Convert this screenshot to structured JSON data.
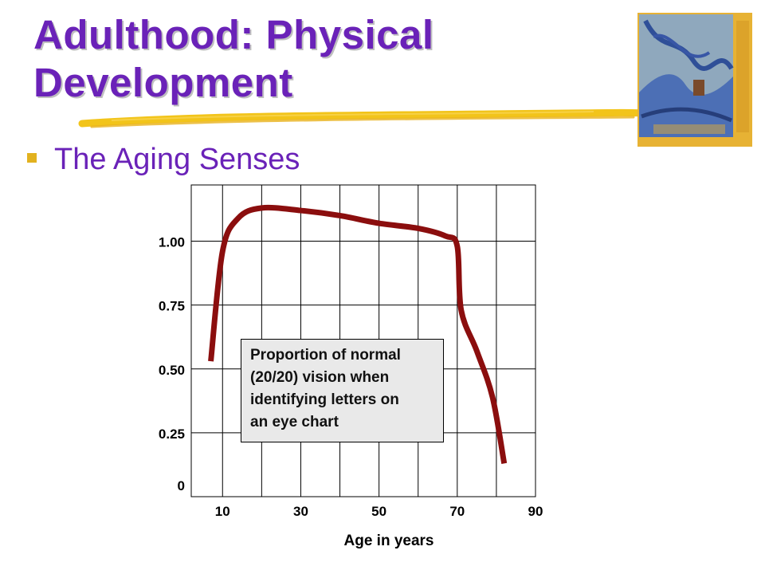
{
  "slide": {
    "title_line1": "Adulthood: Physical",
    "title_line2": "Development",
    "subtitle": "The Aging Senses"
  },
  "colors": {
    "title": "#6a22b8",
    "curve": "#8b0e0e",
    "bullet": "#e2b21f",
    "note_bg": "#e9e9e9"
  },
  "chart_data": {
    "type": "line",
    "xlabel": "Age in years",
    "x_ticks": [
      10,
      30,
      50,
      70,
      90
    ],
    "y_ticks": [
      0,
      0.25,
      0.5,
      0.75,
      1.0
    ],
    "y_tick_labels": [
      "0",
      "0.25",
      "0.50",
      "0.75",
      "1.00"
    ],
    "xlim": [
      2,
      90
    ],
    "ylim": [
      0,
      1.22
    ],
    "grid": true,
    "annotation": "Proportion of normal\n(20/20) vision when\nidentifying letters on\nan eye chart",
    "series": [
      {
        "values": [
          {
            "x": 7,
            "y": 0.53
          },
          {
            "x": 10,
            "y": 0.96
          },
          {
            "x": 14,
            "y": 1.09
          },
          {
            "x": 20,
            "y": 1.13
          },
          {
            "x": 30,
            "y": 1.12
          },
          {
            "x": 40,
            "y": 1.1
          },
          {
            "x": 50,
            "y": 1.07
          },
          {
            "x": 60,
            "y": 1.05
          },
          {
            "x": 67,
            "y": 1.02
          },
          {
            "x": 70,
            "y": 0.98
          },
          {
            "x": 71,
            "y": 0.73
          },
          {
            "x": 75,
            "y": 0.57
          },
          {
            "x": 79,
            "y": 0.39
          },
          {
            "x": 82,
            "y": 0.13
          }
        ]
      }
    ]
  }
}
